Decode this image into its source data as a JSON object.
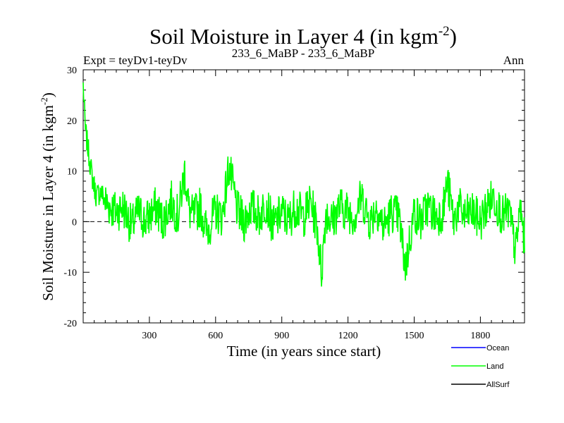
{
  "chart_data": {
    "type": "line",
    "title": "Soil Moisture in Layer 4 (in kgm",
    "title_sup": "-2",
    "title_close": ")",
    "subtitle_left": "Expt = teyDv1-teyDv",
    "subtitle_center": "233_6_MaBP - 233_6_MaBP",
    "subtitle_right": "Ann",
    "xlabel": "Time (in years since start)",
    "ylabel": "Soil Moisture in Layer 4 (in kgm",
    "ylabel_sup": "-2",
    "ylabel_close": ")",
    "xlim": [
      0,
      2000
    ],
    "ylim": [
      -20,
      30
    ],
    "xticks": [
      300,
      600,
      900,
      1200,
      1500,
      1800
    ],
    "yticks": [
      -20,
      -10,
      0,
      10,
      20,
      30
    ],
    "zero_line": true,
    "legend_position": "bottom-right",
    "series": [
      {
        "name": "Ocean",
        "color": "#0000ff",
        "values": []
      },
      {
        "name": "Land",
        "color": "#00ff00",
        "x": [
          0,
          10,
          20,
          30,
          40,
          50,
          60,
          80,
          100,
          120,
          150,
          180,
          200,
          220,
          250,
          280,
          300,
          330,
          360,
          400,
          430,
          460,
          480,
          500,
          530,
          560,
          600,
          630,
          660,
          700,
          730,
          760,
          800,
          830,
          860,
          900,
          930,
          960,
          1000,
          1030,
          1060,
          1080,
          1100,
          1130,
          1160,
          1200,
          1230,
          1260,
          1300,
          1330,
          1360,
          1400,
          1430,
          1460,
          1500,
          1530,
          1560,
          1600,
          1630,
          1650,
          1680,
          1700,
          1730,
          1760,
          1800,
          1830,
          1860,
          1900,
          1930,
          1960,
          1980,
          2000
        ],
        "values": [
          27,
          18,
          15,
          12,
          9,
          7,
          5,
          6,
          4,
          3,
          2,
          3,
          1,
          -1,
          2,
          0,
          1,
          3,
          0,
          4,
          1,
          10,
          2,
          1,
          3,
          -2,
          2,
          1,
          11,
          2,
          0,
          3,
          1,
          4,
          -1,
          2,
          0,
          3,
          1,
          4,
          -1,
          -10,
          2,
          0,
          3,
          2,
          1,
          5,
          0,
          3,
          -1,
          2,
          1,
          -9,
          2,
          0,
          3,
          1,
          2,
          8,
          0,
          3,
          1,
          2,
          0,
          3,
          5,
          1,
          2,
          -6,
          3,
          -4
        ]
      },
      {
        "name": "AllSurf",
        "color": "#000000",
        "values": []
      }
    ]
  }
}
